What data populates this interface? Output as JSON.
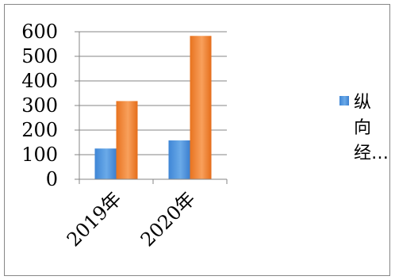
{
  "chart_data": {
    "type": "bar",
    "categories": [
      "2019年",
      "2020年"
    ],
    "series": [
      {
        "name": "纵向经…",
        "values": [
          125,
          158
        ],
        "color": "#4a90d9"
      },
      {
        "name": "",
        "values": [
          318,
          583
        ],
        "color": "#f07f2c"
      }
    ],
    "ylim": [
      0,
      600
    ],
    "yticks": [
      0,
      100,
      200,
      300,
      400,
      500,
      600
    ],
    "grid": true,
    "legend_position": "right",
    "legend_lines": [
      "纵",
      "向",
      "经…"
    ]
  }
}
